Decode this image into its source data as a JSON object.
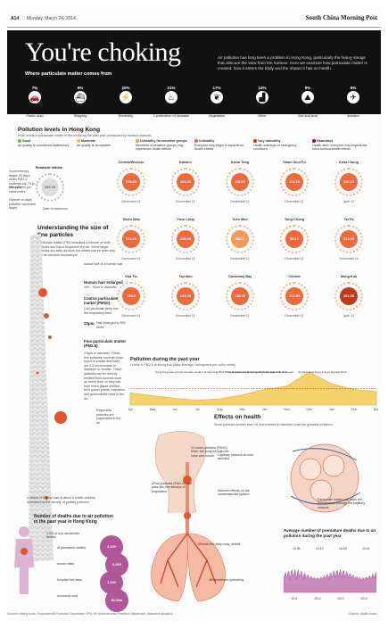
{
  "header": {
    "page": "A14",
    "date": "Monday, March 24, 2014",
    "brand": "South China Morning Post"
  },
  "banner": {
    "title": "You're choking",
    "subtitle": "Where particulate matter comes from",
    "intro": "Air pollution has long been a problem in Hong Kong, particularly the heavy smogs that obscure the view from the harbour. Here we examine how particulate matter is created, how it enters the body and the impact it has on health.",
    "sources": [
      {
        "pct": "7%",
        "label": "Public road",
        "icon": "car-icon",
        "glyph": "🚗"
      },
      {
        "pct": "6%",
        "label": "Shipping",
        "icon": "ship-icon",
        "glyph": "⛴"
      },
      {
        "pct": "20%",
        "label": "Electricity",
        "icon": "power-icon",
        "glyph": "⚡"
      },
      {
        "pct": "21%",
        "label": "Combustion of biomass",
        "icon": "fire-icon",
        "glyph": "♨"
      },
      {
        "pct": "17%",
        "label": "Vegetation",
        "icon": "leaf-icon",
        "glyph": "❦"
      },
      {
        "pct": "14%",
        "label": "Other",
        "icon": "factory-icon",
        "glyph": "▟"
      },
      {
        "pct": "9%",
        "label": "Soil and dust",
        "icon": "dust-icon",
        "glyph": "⛰"
      },
      {
        "pct": "6%",
        "label": "Aviation",
        "icon": "plane-icon",
        "glyph": "✈"
      }
    ]
  },
  "levels": {
    "title": "Pollution levels in Hong Kong",
    "subtitle": "Peak levels of particulate matter in the air during the past year (measured by medical stations)",
    "legend": [
      {
        "label": "Good",
        "color": "#7fb84a",
        "text": "Air quality is considered satisfactory"
      },
      {
        "label": "Moderate",
        "color": "#f3c23e",
        "text": "Air quality is acceptable"
      },
      {
        "label": "Unhealthy for sensitive groups",
        "color": "#f39a5b",
        "text": "Members of sensitive groups may experience health effects"
      },
      {
        "label": "Unhealthy",
        "color": "#ee6a3c",
        "text": "Everyone may begin to experience health effects"
      },
      {
        "label": "Very unhealthy",
        "color": "#c4391d",
        "text": "Health warnings of emergency conditions"
      },
      {
        "label": "Hazardous",
        "color": "#7d1d1d",
        "text": "Health alert: everyone may experience more serious health effects"
      }
    ],
    "example": {
      "station": "Roadside station",
      "value": "XXX.XX",
      "notes": [
        "Government's target: 50 days when PM2.5 readings top 75 in one year",
        "Micrograms per cubic metre",
        "Number of days pollution exceeded target",
        "Date of maximum"
      ]
    },
    "stations": [
      {
        "name": "Central/Western",
        "value": "108.09",
        "date": "December 11",
        "color": "#ee6a3c"
      },
      {
        "name": "Eastern",
        "value": "104.41",
        "date": "December 11",
        "color": "#ee6a3c"
      },
      {
        "name": "Kwun Tong",
        "value": "115.69",
        "date": "December 11",
        "color": "#ee6a3c"
      },
      {
        "name": "Sham Shui Po",
        "value": "114.18",
        "date": "December 11",
        "color": "#ee6a3c"
      },
      {
        "name": "Kwai Chung",
        "value": "130.13",
        "date": "April 12",
        "color": "#ee6a3c"
      },
      {
        "name": "Tsuen Wan",
        "value": "102.76",
        "date": "December 11",
        "color": "#ee6a3c"
      },
      {
        "name": "Yuen Long",
        "value": "106.04",
        "date": "December 11",
        "color": "#ee6a3c"
      },
      {
        "name": "Tuen Mun",
        "value": "85.22",
        "date": "December 11",
        "color": "#f39a5b"
      },
      {
        "name": "Tung Chung",
        "value": "95.17",
        "date": "December 11",
        "color": "#ee6a3c"
      },
      {
        "name": "Tai Po",
        "value": "134.98",
        "date": "December 11",
        "color": "#ee6a3c"
      },
      {
        "name": "Sha Tin",
        "value": "109.8",
        "date": "December 11",
        "color": "#ee6a3c"
      },
      {
        "name": "Tap Mun",
        "value": "140.09",
        "date": "December 11",
        "color": "#ee6a3c"
      },
      {
        "name": "Causeway Bay",
        "value": "148.66",
        "date": "December 11",
        "color": "#ee6a3c"
      },
      {
        "name": "Central",
        "value": "122.99",
        "date": "December 11",
        "color": "#ee6a3c"
      },
      {
        "name": "Mong Kok",
        "value": "151.88",
        "date": "April 13",
        "color": "#c4391d"
      }
    ]
  },
  "particles": {
    "title": "Understanding the size of fine particles",
    "intro": "Particulate matter (PM) describes a mixture of solid particles and liquid droplets in the air. Some larger particles are seen as soot, but others can be seen only with an electron microscope.",
    "hair_label": "Actual size of a human hair",
    "hair_head": "Human hair enlarged",
    "hair_note": "100 - 70um in diameter",
    "coarse_head": "Coarse particulate matter (PM10)",
    "coarse_note": "Can penetrate deep into the respiratory tract",
    "micro_head": "10μm",
    "micro_note": "Hair enlarged to 500 times",
    "fine_head": "Fine particulate matter (PM2.5)",
    "fine_note": "2.5μm in diameter. These fine particles, such as those found in smoke and haze, are 2.5 micrometres in diameter or smaller. These particles can be directly emitted from sources such as forest fires, or they can form when gases emitted from power plants, industries and automobiles react in the air.",
    "resp_note": "Respirable particles are suspended in the air",
    "caption": "A strand of human hair at about x 4 with visibility increased by the density of particle pollution"
  },
  "chart_data": {
    "type": "area",
    "title": "Pollution during the past year",
    "subtitle": "Levels of PM2.5 at Mong Kok (daily average, micrograms per cubic metre)",
    "x": [
      "Apr",
      "May",
      "Jun",
      "Jul",
      "Aug",
      "Sep",
      "Oct",
      "Nov",
      "Dec",
      "Jan",
      "Feb",
      "Mar"
    ],
    "values": [
      55,
      42,
      30,
      22,
      28,
      45,
      70,
      85,
      148,
      95,
      70,
      60
    ],
    "ylim": [
      0,
      160
    ],
    "annotations": [
      "Hong Kong saw a fresh average number of days that PM2.5 levels exceeded its recognised safe limit in its short year",
      "The Environmental Europe AQG average daily limit",
      "On thick level Hong Kong's glowest 2013"
    ]
  },
  "health": {
    "title": "Effects on health",
    "subtitle": "Small particles smaller than 10 micrometres in diameter pose the greatest problems",
    "steps": [
      {
        "n": "1",
        "text": "Coarse particles (PM10) Enter the body through the nose and mouth"
      },
      {
        "n": "2",
        "text": "Fine particles (PM2.5) Can pass into the airways of respiration"
      },
      {
        "n": "3",
        "text": "Reach the deep lung, alveoli"
      },
      {
        "n": "4",
        "text": "Bloodstream spreading"
      }
    ],
    "labels": [
      "Coughing",
      "Trachea",
      "Right lung",
      "Left lung",
      "Alveoli",
      "Bronchus",
      "Capillary",
      "Respiratory bronchiole",
      "Inflammation",
      "Terminal bronchiole",
      "Pulmonary artery"
    ],
    "lung_notes": [
      "Capillary network around alveolus",
      "Adverse effects on the cardiovascular system",
      "Particulate matter can enter the bloodstream through the capillary network"
    ]
  },
  "deaths": {
    "title": "Number of deaths due to air pollution in the past year in Hong Kong",
    "stats": [
      {
        "value": "3,100",
        "label": "of premature deaths"
      },
      {
        "value": "3,000",
        "label": "doctor visits"
      },
      {
        "value": "1,200",
        "label": "hospital bed days"
      },
      {
        "value": "$1.5bn",
        "label": "economic cost"
      }
    ],
    "side_note": "1.4% of non-accidental deaths"
  },
  "avg_chart": {
    "title": "Average number of premature deaths due to air pollution during the past year",
    "peaks": [
      "16.38",
      "14.13",
      "16.53",
      "13.61"
    ],
    "x": [
      "2011",
      "2012",
      "2013",
      "2014"
    ]
  },
  "footer": {
    "left": "Sources: Hedley Index, Environmental Protection Department, EPA, HK Environmental Protection Department, Interactive Analytics",
    "right": "Graphic: Adolfo Arranz"
  }
}
